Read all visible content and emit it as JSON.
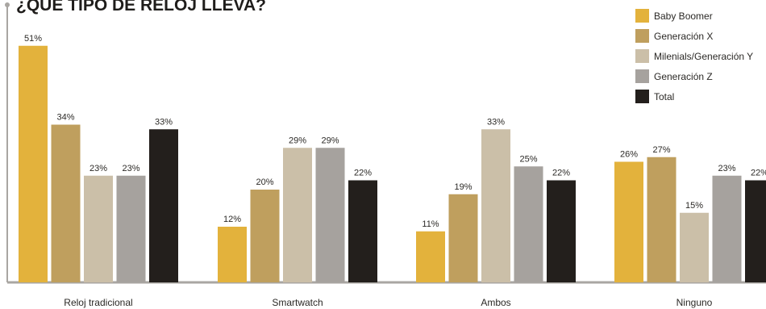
{
  "chart_data": {
    "type": "bar",
    "title": "¿QUÉ TIPO DE RELOJ LLEVA?",
    "xlabel": "",
    "ylabel": "",
    "ylim": [
      0,
      55
    ],
    "unit": "%",
    "grid": false,
    "legend_position": "top-right",
    "categories": [
      "Reloj tradicional",
      "Smartwatch",
      "Ambos",
      "Ninguno"
    ],
    "series": [
      {
        "name": "Baby Boomer",
        "color": "#e3b23c",
        "values": [
          51,
          12,
          11,
          26
        ]
      },
      {
        "name": "Generación X",
        "color": "#bf9f5e",
        "values": [
          34,
          20,
          19,
          27
        ]
      },
      {
        "name": "Milenials/Generación Y",
        "color": "#cbbfa8",
        "values": [
          23,
          29,
          33,
          15
        ]
      },
      {
        "name": "Generación Z",
        "color": "#a6a29e",
        "values": [
          23,
          29,
          25,
          23
        ]
      },
      {
        "name": "Total",
        "color": "#231f1c",
        "values": [
          33,
          22,
          22,
          22
        ]
      }
    ]
  }
}
